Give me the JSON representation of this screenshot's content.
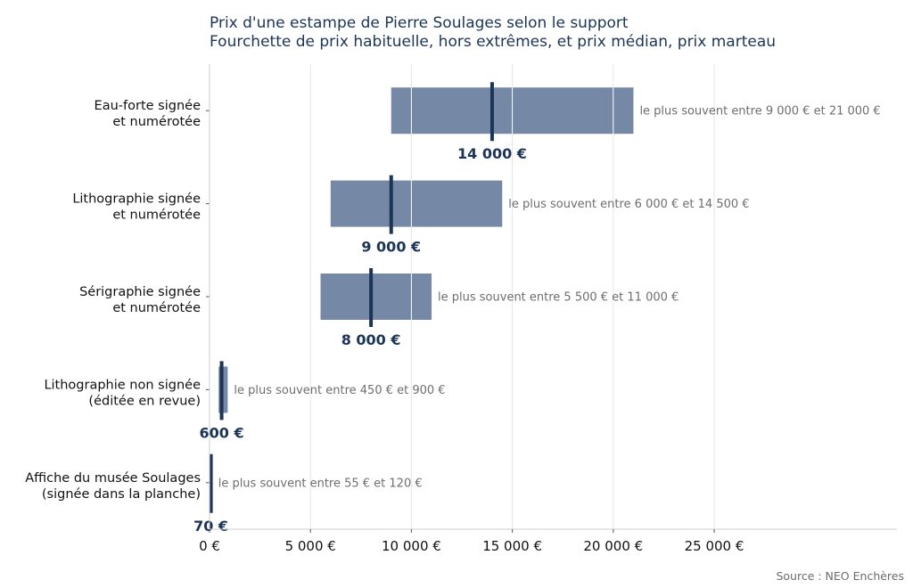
{
  "title": "Prix d'une estampe de Pierre Soulages selon le support",
  "subtitle": "Fourchette de prix habituelle, hors extrêmes, et prix médian, prix marteau",
  "source": "Source : NEO Enchères",
  "colors": {
    "bar": "#7589a6",
    "median": "#1c3557",
    "grid": "#e6e6e6",
    "axis": "#cccccc"
  },
  "chart_data": {
    "type": "bar",
    "orientation": "horizontal",
    "title": "Prix d'une estampe de Pierre Soulages selon le support",
    "subtitle": "Fourchette de prix habituelle, hors extrêmes, et prix médian, prix marteau",
    "xlim": [
      0,
      34000
    ],
    "x_ticks": [
      0,
      5000,
      10000,
      15000,
      20000,
      25000
    ],
    "x_tick_labels": [
      "0 €",
      "5 000 €",
      "10 000 €",
      "15 000 €",
      "20 000 €",
      "25 000 €"
    ],
    "grid": true,
    "categories": [
      {
        "label": [
          "Eau-forte signée",
          "et numérotée"
        ],
        "low": 9000,
        "high": 21000,
        "median": 14000,
        "median_label": "14 000 €",
        "range_label": "le plus souvent entre 9 000 € et 21 000 €"
      },
      {
        "label": [
          "Lithographie signée",
          "et numérotée"
        ],
        "low": 6000,
        "high": 14500,
        "median": 9000,
        "median_label": "9 000 €",
        "range_label": "le plus souvent entre 6 000 € et 14 500 €"
      },
      {
        "label": [
          "Sérigraphie signée",
          "et numérotée"
        ],
        "low": 5500,
        "high": 11000,
        "median": 8000,
        "median_label": "8 000 €",
        "range_label": "le plus souvent entre 5 500 € et 11 000 €"
      },
      {
        "label": [
          "Lithographie non signée",
          "(éditée en revue)"
        ],
        "low": 450,
        "high": 900,
        "median": 600,
        "median_label": "600 €",
        "range_label": "le plus souvent entre 450 € et 900 €"
      },
      {
        "label": [
          "Affiche du musée Soulages",
          "(signée dans la planche)"
        ],
        "low": 55,
        "high": 120,
        "median": 70,
        "median_label": "70 €",
        "range_label": "le plus souvent entre 55 € et 120 €"
      }
    ]
  }
}
